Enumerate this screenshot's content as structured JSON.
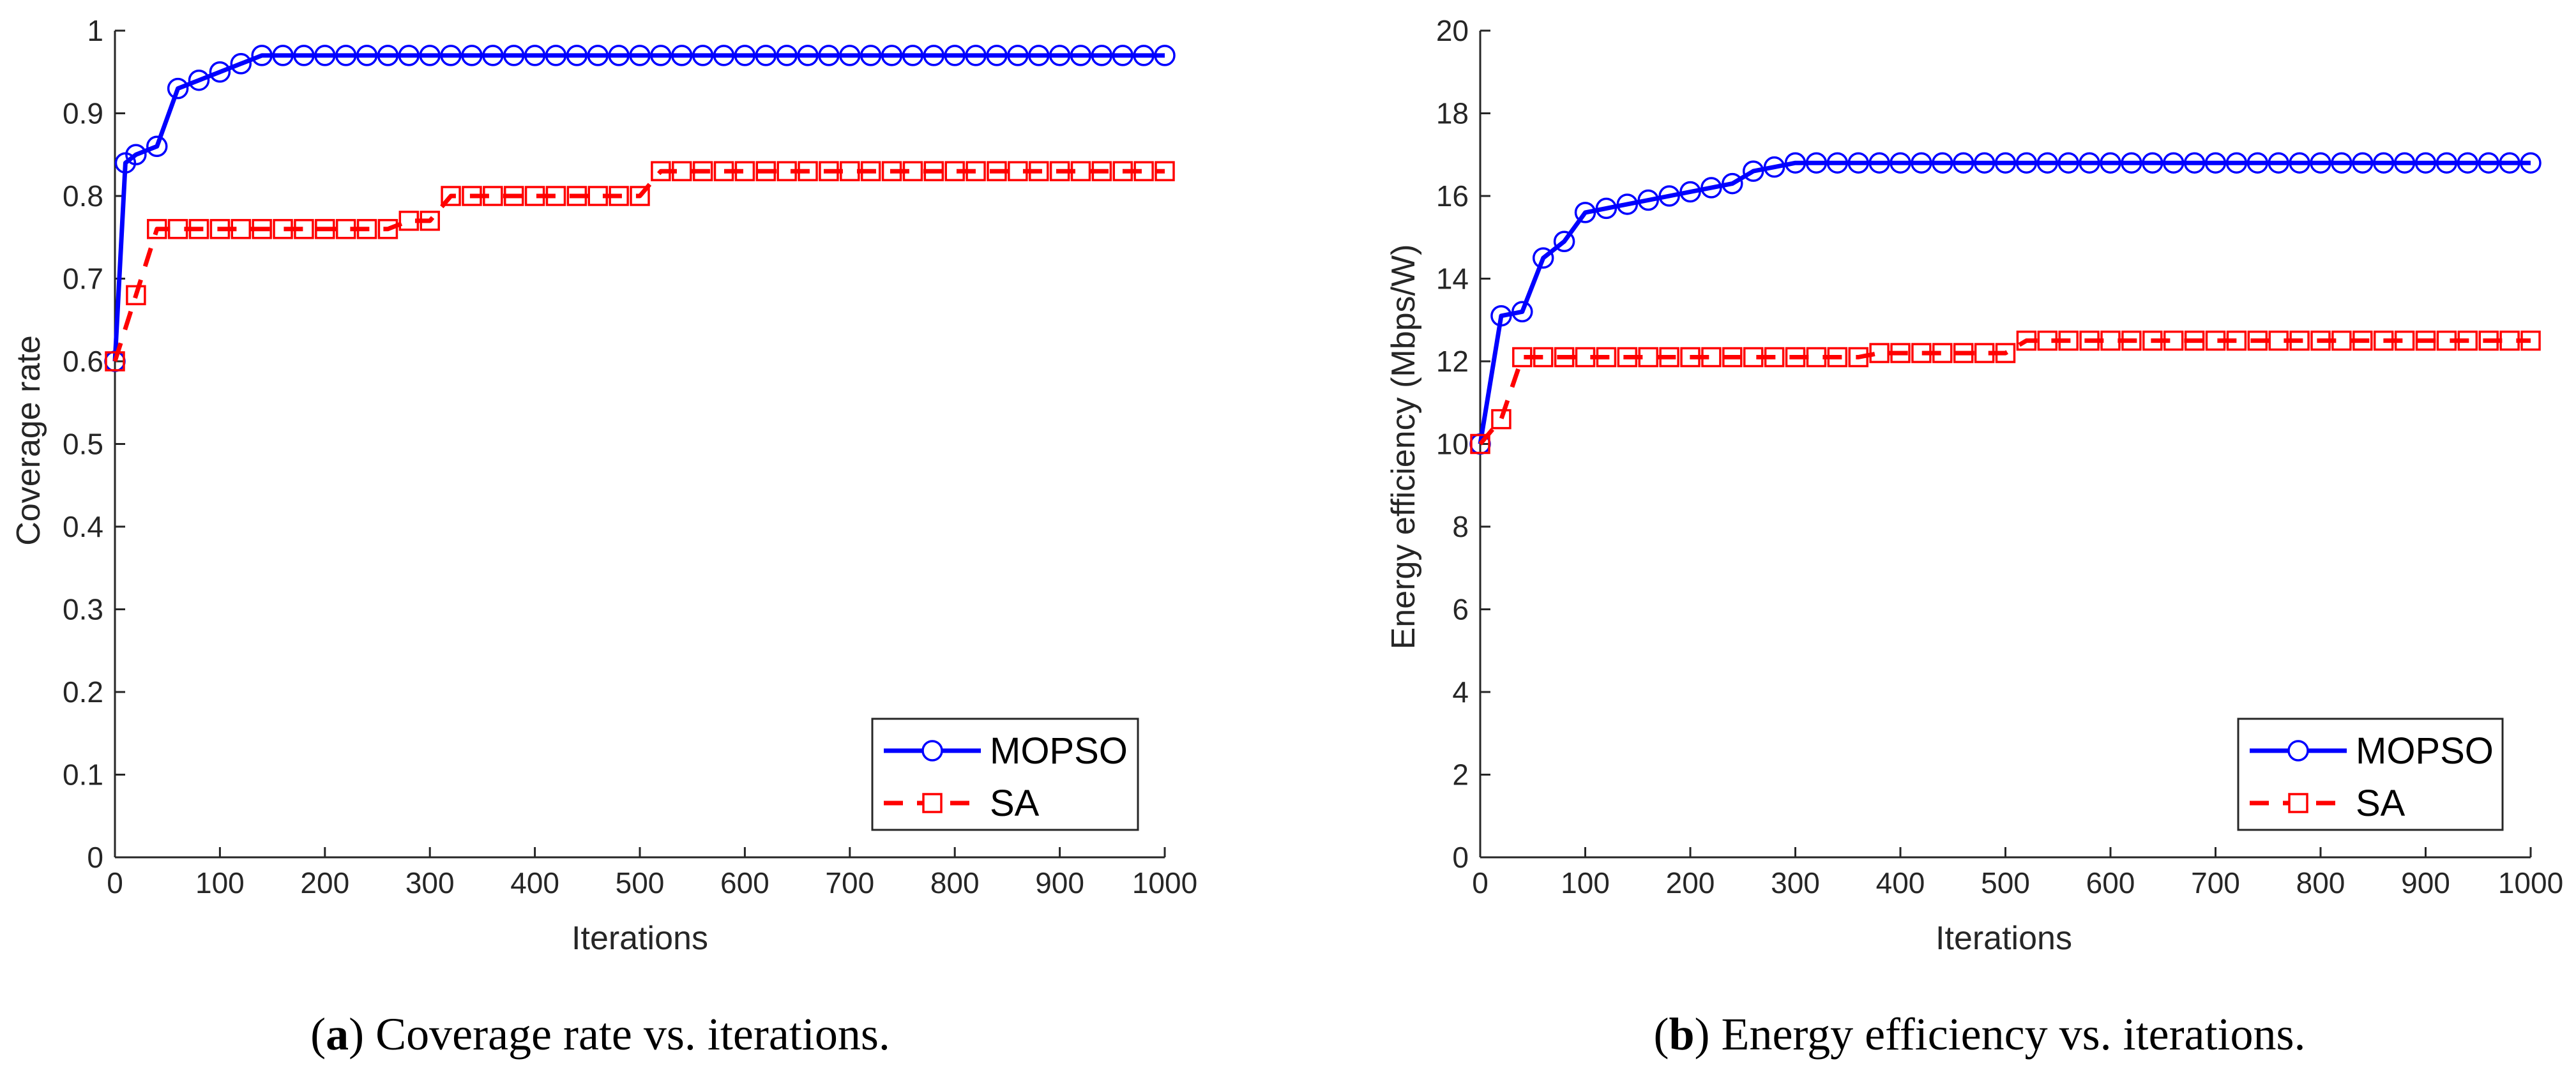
{
  "chart_data": [
    {
      "type": "line",
      "panel": "a",
      "caption": "Coverage rate vs. iterations.",
      "xlabel": "Iterations",
      "ylabel": "Coverage rate",
      "xlim": [
        0,
        1000
      ],
      "ylim": [
        0,
        1
      ],
      "xticks": [
        0,
        100,
        200,
        300,
        400,
        500,
        600,
        700,
        800,
        900,
        1000
      ],
      "yticks": [
        0,
        0.1,
        0.2,
        0.3,
        0.4,
        0.5,
        0.6,
        0.7,
        0.8,
        0.9,
        1
      ],
      "ytick_labels": [
        "0",
        "0.1",
        "0.2",
        "0.3",
        "0.4",
        "0.5",
        "0.6",
        "0.7",
        "0.8",
        "0.9",
        "1"
      ],
      "grid": false,
      "legend_position": "bottom-right",
      "series": [
        {
          "name": "MOPSO",
          "color": "#0000ff",
          "linestyle": "solid",
          "marker": "circle",
          "x": [
            0,
            10,
            20,
            40,
            60,
            80,
            100,
            120,
            140,
            160,
            180,
            200,
            220,
            240,
            260,
            280,
            300,
            320,
            340,
            360,
            380,
            400,
            420,
            440,
            460,
            480,
            500,
            520,
            540,
            560,
            580,
            600,
            620,
            640,
            660,
            680,
            700,
            720,
            740,
            760,
            780,
            800,
            820,
            840,
            860,
            880,
            900,
            920,
            940,
            960,
            980,
            1000
          ],
          "y": [
            0.6,
            0.84,
            0.85,
            0.86,
            0.93,
            0.94,
            0.95,
            0.96,
            0.97,
            0.97,
            0.97,
            0.97,
            0.97,
            0.97,
            0.97,
            0.97,
            0.97,
            0.97,
            0.97,
            0.97,
            0.97,
            0.97,
            0.97,
            0.97,
            0.97,
            0.97,
            0.97,
            0.97,
            0.97,
            0.97,
            0.97,
            0.97,
            0.97,
            0.97,
            0.97,
            0.97,
            0.97,
            0.97,
            0.97,
            0.97,
            0.97,
            0.97,
            0.97,
            0.97,
            0.97,
            0.97,
            0.97,
            0.97,
            0.97,
            0.97,
            0.97,
            0.97
          ]
        },
        {
          "name": "SA",
          "color": "#ff0000",
          "linestyle": "dashed",
          "marker": "square",
          "x": [
            0,
            20,
            40,
            60,
            80,
            100,
            120,
            140,
            160,
            180,
            200,
            220,
            240,
            260,
            280,
            300,
            320,
            340,
            360,
            380,
            400,
            420,
            440,
            460,
            480,
            500,
            520,
            540,
            560,
            580,
            600,
            620,
            640,
            660,
            680,
            700,
            720,
            740,
            760,
            780,
            800,
            820,
            840,
            860,
            880,
            900,
            920,
            940,
            960,
            980,
            1000
          ],
          "y": [
            0.6,
            0.68,
            0.76,
            0.76,
            0.76,
            0.76,
            0.76,
            0.76,
            0.76,
            0.76,
            0.76,
            0.76,
            0.76,
            0.76,
            0.77,
            0.77,
            0.8,
            0.8,
            0.8,
            0.8,
            0.8,
            0.8,
            0.8,
            0.8,
            0.8,
            0.8,
            0.83,
            0.83,
            0.83,
            0.83,
            0.83,
            0.83,
            0.83,
            0.83,
            0.83,
            0.83,
            0.83,
            0.83,
            0.83,
            0.83,
            0.83,
            0.83,
            0.83,
            0.83,
            0.83,
            0.83,
            0.83,
            0.83,
            0.83,
            0.83,
            0.83
          ]
        }
      ]
    },
    {
      "type": "line",
      "panel": "b",
      "caption": "Energy efficiency vs. iterations.",
      "xlabel": "Iterations",
      "ylabel": "Energy efficiency (Mbps/W)",
      "xlim": [
        0,
        1000
      ],
      "ylim": [
        0,
        20
      ],
      "xticks": [
        0,
        100,
        200,
        300,
        400,
        500,
        600,
        700,
        800,
        900,
        1000
      ],
      "yticks": [
        0,
        2,
        4,
        6,
        8,
        10,
        12,
        14,
        16,
        18,
        20
      ],
      "ytick_labels": [
        "0",
        "2",
        "4",
        "6",
        "8",
        "10",
        "12",
        "14",
        "16",
        "18",
        "20"
      ],
      "grid": false,
      "legend_position": "bottom-right",
      "series": [
        {
          "name": "MOPSO",
          "color": "#0000ff",
          "linestyle": "solid",
          "marker": "circle",
          "x": [
            0,
            20,
            40,
            60,
            80,
            100,
            120,
            140,
            160,
            180,
            200,
            220,
            240,
            260,
            280,
            300,
            320,
            340,
            360,
            380,
            400,
            420,
            440,
            460,
            480,
            500,
            520,
            540,
            560,
            580,
            600,
            620,
            640,
            660,
            680,
            700,
            720,
            740,
            760,
            780,
            800,
            820,
            840,
            860,
            880,
            900,
            920,
            940,
            960,
            980,
            1000
          ],
          "y": [
            10.0,
            13.1,
            13.2,
            14.5,
            14.9,
            15.6,
            15.7,
            15.8,
            15.9,
            16.0,
            16.1,
            16.2,
            16.3,
            16.6,
            16.7,
            16.8,
            16.8,
            16.8,
            16.8,
            16.8,
            16.8,
            16.8,
            16.8,
            16.8,
            16.8,
            16.8,
            16.8,
            16.8,
            16.8,
            16.8,
            16.8,
            16.8,
            16.8,
            16.8,
            16.8,
            16.8,
            16.8,
            16.8,
            16.8,
            16.8,
            16.8,
            16.8,
            16.8,
            16.8,
            16.8,
            16.8,
            16.8,
            16.8,
            16.8,
            16.8,
            16.8
          ]
        },
        {
          "name": "SA",
          "color": "#ff0000",
          "linestyle": "dashed",
          "marker": "square",
          "x": [
            0,
            20,
            40,
            60,
            80,
            100,
            120,
            140,
            160,
            180,
            200,
            220,
            240,
            260,
            280,
            300,
            320,
            340,
            360,
            380,
            400,
            420,
            440,
            460,
            480,
            500,
            520,
            540,
            560,
            580,
            600,
            620,
            640,
            660,
            680,
            700,
            720,
            740,
            760,
            780,
            800,
            820,
            840,
            860,
            880,
            900,
            920,
            940,
            960,
            980,
            1000
          ],
          "y": [
            10.0,
            10.6,
            12.1,
            12.1,
            12.1,
            12.1,
            12.1,
            12.1,
            12.1,
            12.1,
            12.1,
            12.1,
            12.1,
            12.1,
            12.1,
            12.1,
            12.1,
            12.1,
            12.1,
            12.2,
            12.2,
            12.2,
            12.2,
            12.2,
            12.2,
            12.2,
            12.5,
            12.5,
            12.5,
            12.5,
            12.5,
            12.5,
            12.5,
            12.5,
            12.5,
            12.5,
            12.5,
            12.5,
            12.5,
            12.5,
            12.5,
            12.5,
            12.5,
            12.5,
            12.5,
            12.5,
            12.5,
            12.5,
            12.5,
            12.5,
            12.5
          ]
        }
      ]
    }
  ]
}
